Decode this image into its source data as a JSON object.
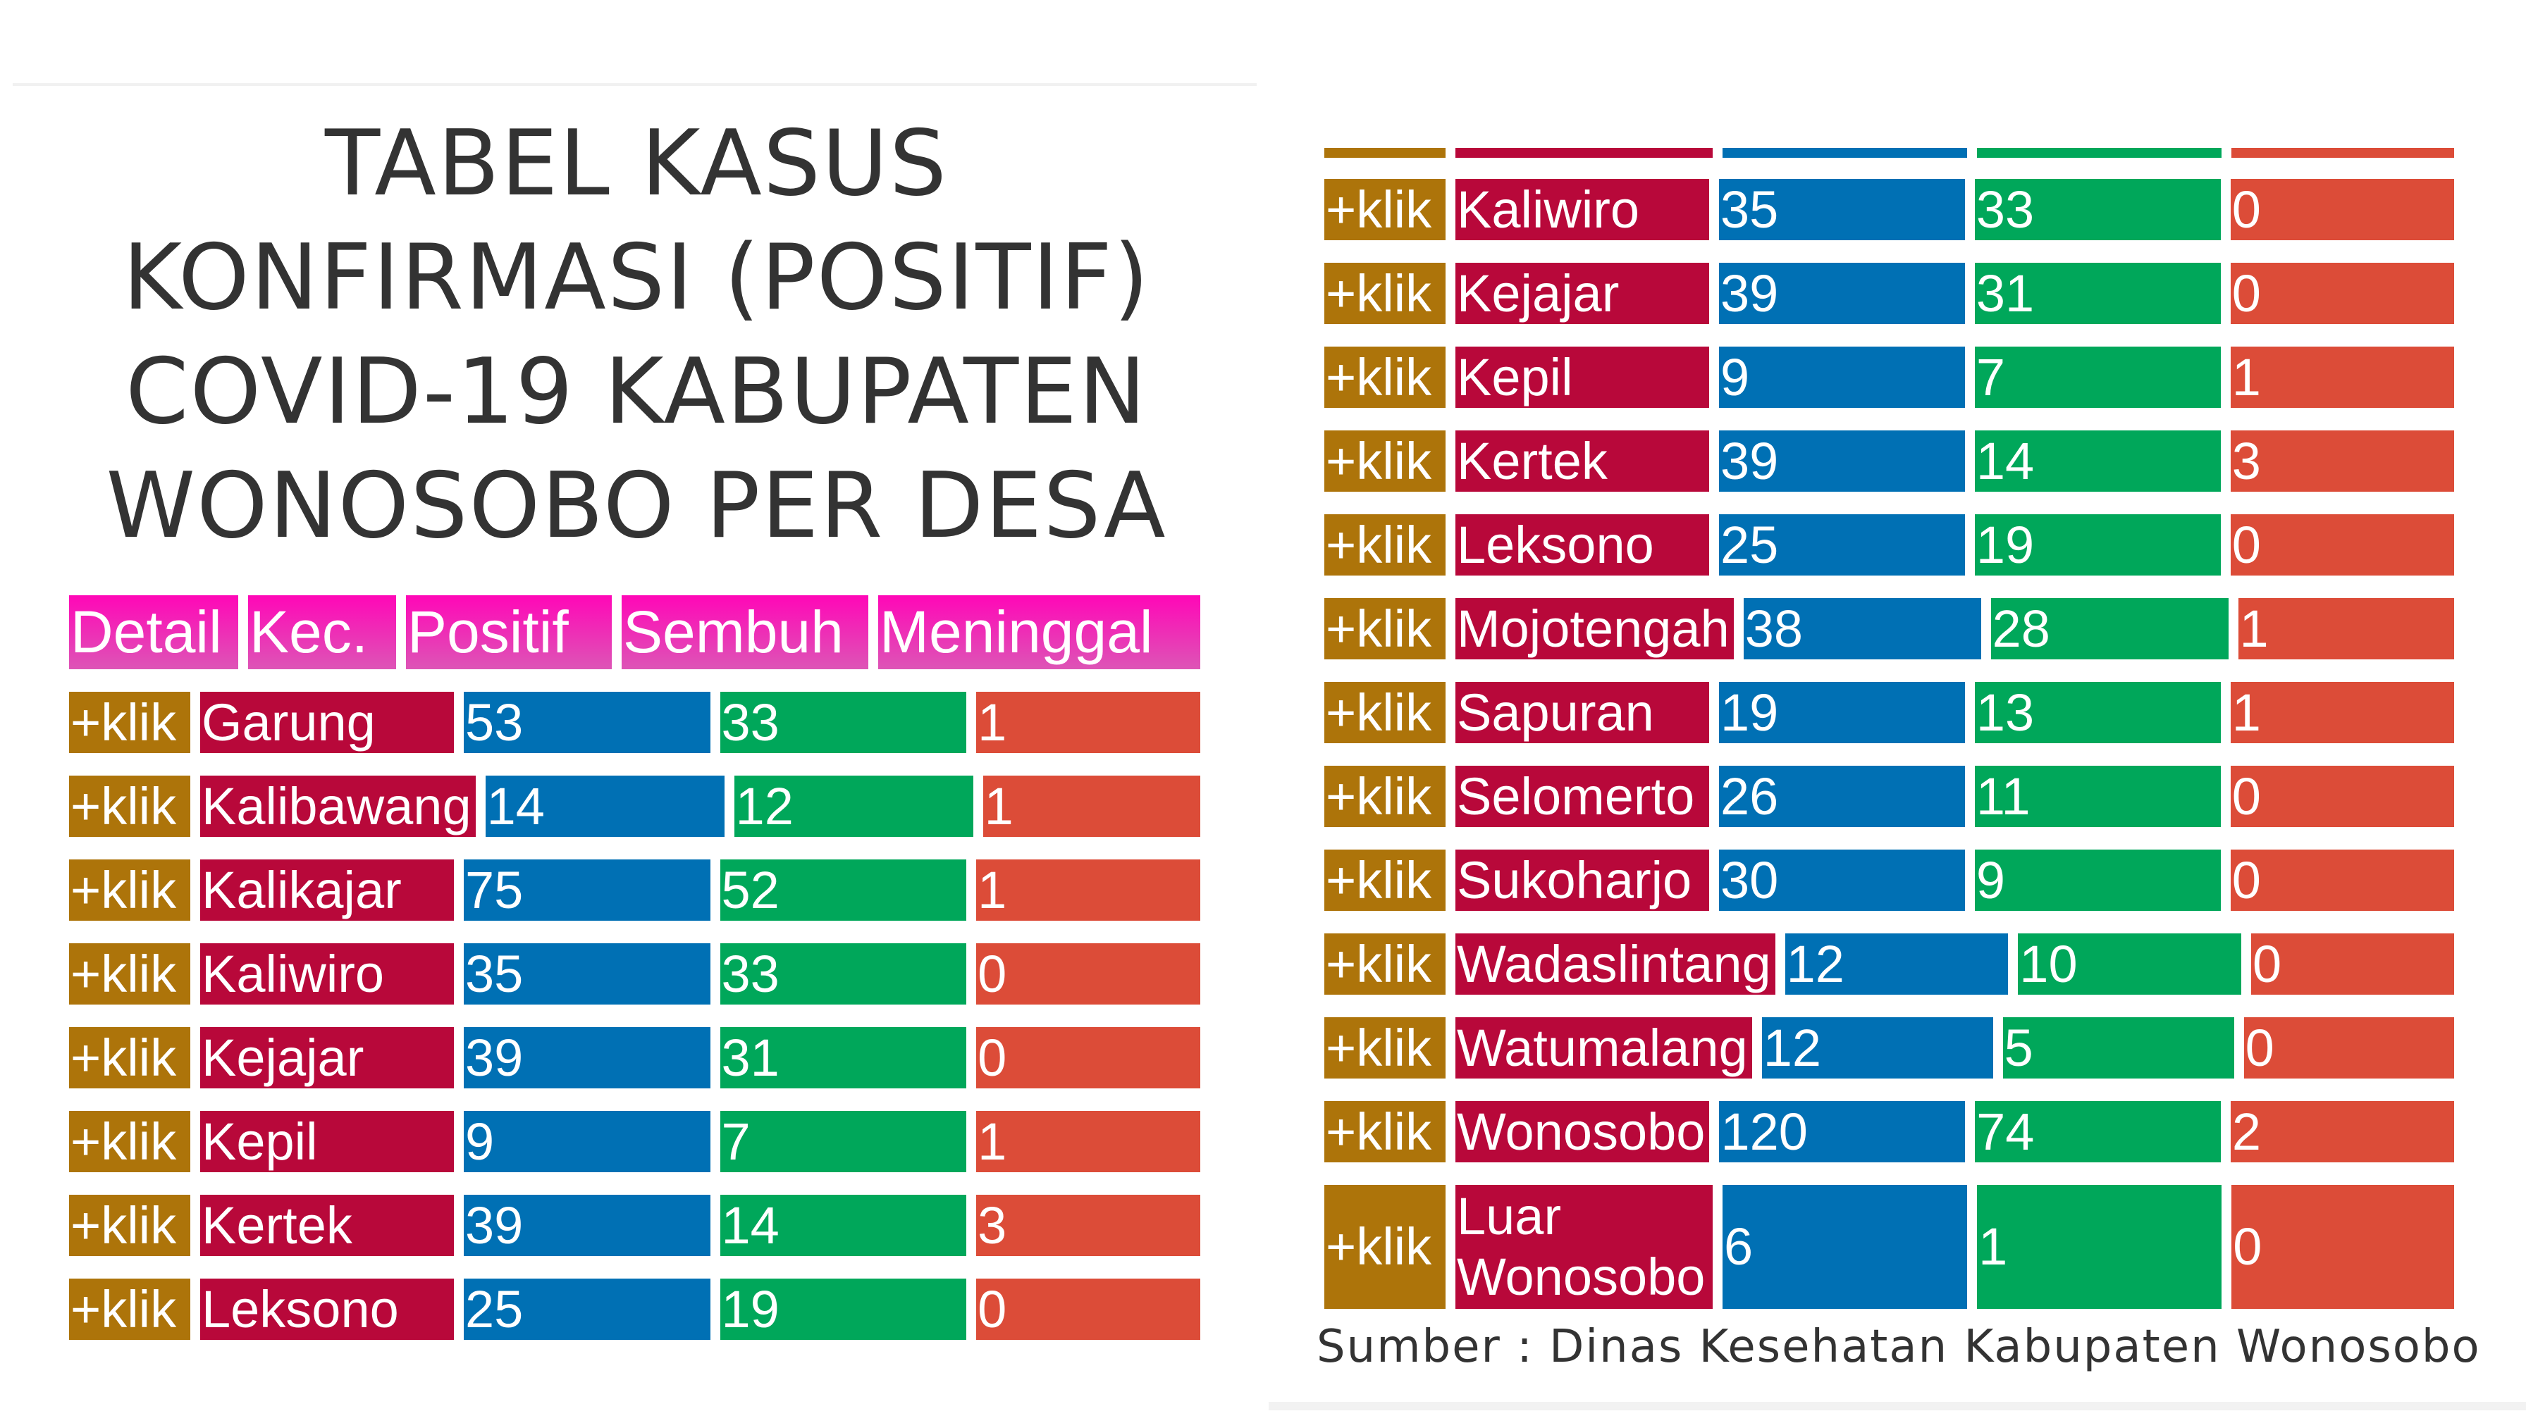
{
  "title_lines": [
    "TABEL KASUS",
    "KONFIRMASI (POSITIF)",
    "COVID-19 KABUPATEN",
    "WONOSOBO PER DESA"
  ],
  "headers": [
    "Detail",
    "Kec.",
    "Positif",
    "Sembuh",
    "Meninggal"
  ],
  "detail_label": "+klik",
  "colors": {
    "detail": "#ad740a",
    "kecamatan": "#b8083a",
    "positif": "#0070b4",
    "sembuh": "#00a75a",
    "meninggal": "#dc4c38",
    "header": "#ff07b7"
  },
  "left_rows": [
    {
      "kec": "Garung",
      "positif": 53,
      "sembuh": 33,
      "meninggal": 1
    },
    {
      "kec": "Kalibawang",
      "positif": 14,
      "sembuh": 12,
      "meninggal": 1
    },
    {
      "kec": "Kalikajar",
      "positif": 75,
      "sembuh": 52,
      "meninggal": 1
    },
    {
      "kec": "Kaliwiro",
      "positif": 35,
      "sembuh": 33,
      "meninggal": 0
    },
    {
      "kec": "Kejajar",
      "positif": 39,
      "sembuh": 31,
      "meninggal": 0
    },
    {
      "kec": "Kepil",
      "positif": 9,
      "sembuh": 7,
      "meninggal": 1
    },
    {
      "kec": "Kertek",
      "positif": 39,
      "sembuh": 14,
      "meninggal": 3
    },
    {
      "kec": "Leksono",
      "positif": 25,
      "sembuh": 19,
      "meninggal": 0
    }
  ],
  "right_rows": [
    {
      "kec": "Kaliwiro",
      "positif": 35,
      "sembuh": 33,
      "meninggal": 0
    },
    {
      "kec": "Kejajar",
      "positif": 39,
      "sembuh": 31,
      "meninggal": 0
    },
    {
      "kec": "Kepil",
      "positif": 9,
      "sembuh": 7,
      "meninggal": 1
    },
    {
      "kec": "Kertek",
      "positif": 39,
      "sembuh": 14,
      "meninggal": 3
    },
    {
      "kec": "Leksono",
      "positif": 25,
      "sembuh": 19,
      "meninggal": 0
    },
    {
      "kec": "Mojotengah",
      "positif": 38,
      "sembuh": 28,
      "meninggal": 1
    },
    {
      "kec": "Sapuran",
      "positif": 19,
      "sembuh": 13,
      "meninggal": 1
    },
    {
      "kec": "Selomerto",
      "positif": 26,
      "sembuh": 11,
      "meninggal": 0
    },
    {
      "kec": "Sukoharjo",
      "positif": 30,
      "sembuh": 9,
      "meninggal": 0
    },
    {
      "kec": "Wadaslintang",
      "positif": 12,
      "sembuh": 10,
      "meninggal": 0
    },
    {
      "kec": "Watumalang",
      "positif": 12,
      "sembuh": 5,
      "meninggal": 0
    },
    {
      "kec": "Wonosobo",
      "positif": 120,
      "sembuh": 74,
      "meninggal": 2
    },
    {
      "kec": "Luar Wonosobo",
      "kec_lines": [
        "Luar",
        "Wonosobo"
      ],
      "positif": 6,
      "sembuh": 1,
      "meninggal": 0
    }
  ],
  "source": "Sumber : Dinas Kesehatan Kabupaten Wonosobo"
}
